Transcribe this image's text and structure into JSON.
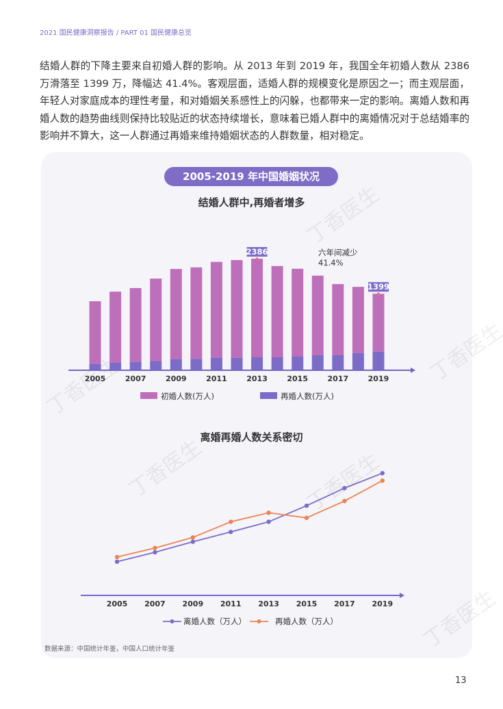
{
  "header": {
    "running_title": "2021 国民健康洞察报告 / PART 01 国民健康总览"
  },
  "body": {
    "paragraph": "结婚人群的下降主要来自初婚人群的影响。从 2013 年到 2019 年，我国全年初婚人数从 2386 万滑落至 1399 万，降幅达 41.4%。客观层面，适婚人群的规模变化是原因之一；而主观层面，年轻人对家庭成本的理性考量，和对婚姻关系感性上的闪躲，也都带来一定的影响。离婚人数和再婚人数的趋势曲线则保持比较贴近的状态持续增长，意味着已婚人群中的离婚情况对于总结婚率的影响并不算大，这一人群通过再婚来维持婚姻状态的人群数量，相对稳定。"
  },
  "panel": {
    "title": "2005-2019 年中国婚姻状况",
    "watermark": "丁香医生",
    "source": "数据来源：中国统计年鉴，中国人口统计年鉴"
  },
  "chart_data": [
    {
      "type": "bar",
      "stacked": true,
      "title": "结婚人群中,再婚者增多",
      "years": [
        2005,
        2006,
        2007,
        2008,
        2009,
        2010,
        2011,
        2012,
        2013,
        2014,
        2015,
        2016,
        2017,
        2018,
        2019
      ],
      "tick_labels": [
        "2005",
        "2007",
        "2009",
        "2011",
        "2013",
        "2015",
        "2017",
        "2019"
      ],
      "series": [
        {
          "name": "再婚人数(万人)",
          "color": "#7c6cc8",
          "values": [
            161,
            188,
            204,
            227,
            277,
            277,
            299,
            299,
            315,
            315,
            332,
            365,
            365,
            420,
            453
          ]
        },
        {
          "name": "初婚人数(万人)",
          "color": "#be6fba",
          "values": [
            1510,
            1715,
            1786,
            1992,
            2175,
            2213,
            2324,
            2369,
            2386,
            2208,
            2125,
            1926,
            1721,
            1599,
            1399
          ]
        }
      ],
      "data_labels": [
        {
          "year": 2013,
          "text": "2386"
        },
        {
          "year": 2019,
          "text": "1399"
        }
      ],
      "annotation": {
        "line1": "六年间减少",
        "line2": "41.4%"
      },
      "ylim": [
        0,
        2600
      ],
      "legend": "bottom"
    },
    {
      "type": "line",
      "title": "离婚再婚人数关系密切",
      "x": [
        2005,
        2007,
        2009,
        2011,
        2013,
        2015,
        2017,
        2019
      ],
      "tick_labels": [
        "2005",
        "2007",
        "2009",
        "2011",
        "2013",
        "2015",
        "2017",
        "2019"
      ],
      "series": [
        {
          "name": "离婚人数（万人）",
          "color": "#7c6cc8",
          "values": [
            714,
            738,
            765,
            790,
            816,
            857,
            902,
            940
          ]
        },
        {
          "name": "再婚人数（万人）",
          "color": "#ec8452",
          "values": [
            726,
            749,
            776,
            816,
            839,
            826,
            869,
            921
          ]
        }
      ],
      "ylim": [
        628,
        960
      ],
      "legend": "bottom"
    }
  ],
  "page_number": "13"
}
